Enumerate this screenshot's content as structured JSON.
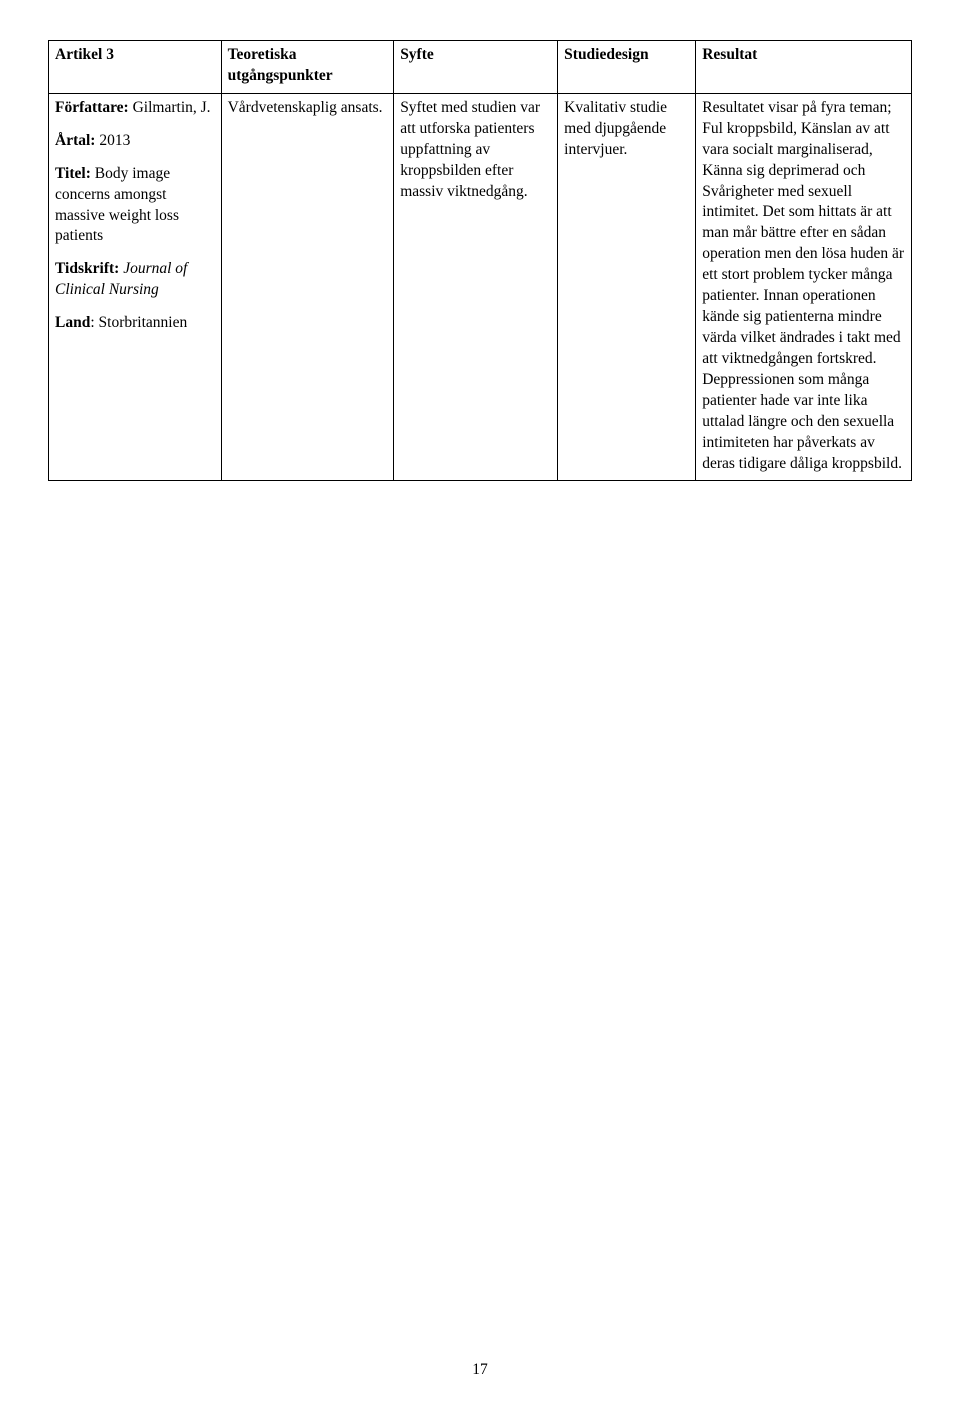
{
  "header": {
    "c1": "Artikel 3",
    "c2": "Teoretiska utgångspunkter",
    "c3": "Syfte",
    "c4": "Studiedesign",
    "c5": "Resultat"
  },
  "row": {
    "c1": {
      "author_label": "Författare:",
      "author_val": "Gilmartin, J.",
      "year_label": "Årtal:",
      "year_val": "2013",
      "title_label": "Titel:",
      "title_val": "Body image concerns amongst massive weight loss patients",
      "journal_label": "Tidskrift:",
      "journal_val": "Journal of Clinical Nursing",
      "country_label": "Land",
      "country_colon": ":",
      "country_val": "Storbritannien"
    },
    "c2": "Vårdvetenskaplig ansats.",
    "c3": "Syftet med studien var att utforska patienters uppfattning av kroppsbilden efter massiv viktnedgång.",
    "c4": "Kvalitativ studie med djupgående intervjuer.",
    "c5": "Resultatet visar på fyra teman; Ful kroppsbild, Känslan av att vara socialt marginaliserad, Känna sig deprimerad och Svårigheter med sexuell intimitet. Det som hittats är att man mår bättre efter en sådan operation men den lösa huden är ett stort problem tycker många patienter. Innan operationen kände sig patienterna mindre värda vilket ändrades i takt med att viktnedgången fortskred. Deppressionen som många patienter hade var inte lika uttalad längre och den sexuella intimiteten har påverkats av deras tidigare dåliga kroppsbild."
  },
  "page_number": "17"
}
